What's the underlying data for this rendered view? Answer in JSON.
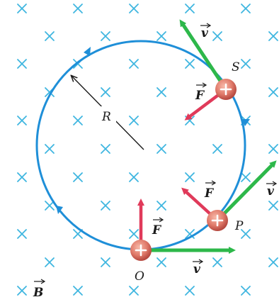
{
  "labels": {
    "radius": "R",
    "point_s": "S",
    "point_p": "P",
    "point_o": "O",
    "velocity": "v",
    "force": "F",
    "field": "B"
  },
  "colors": {
    "field_cross": "#3fb6e0",
    "orbit": "#1f8fd8",
    "velocity": "#2db84a",
    "force": "#e03a5a",
    "charge": "#e07a6a"
  },
  "icons": {
    "field_symbol": "cross-into-page",
    "charge_symbol": "plus"
  }
}
